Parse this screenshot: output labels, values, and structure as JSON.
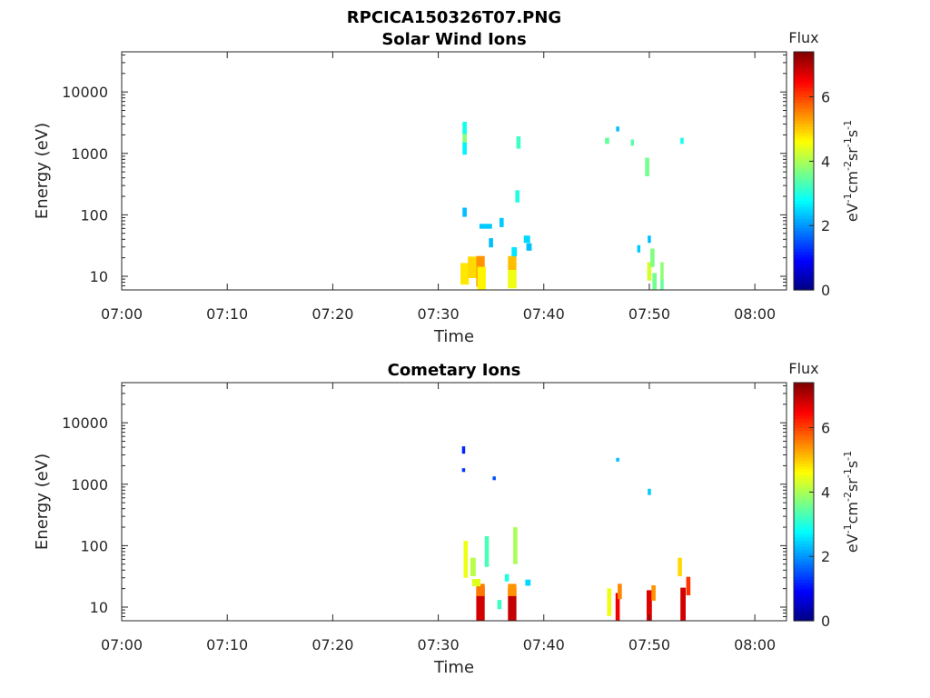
{
  "figure_title": "RPCICA150326T07.PNG",
  "colorbar": {
    "title": "Flux",
    "ticks": [
      0,
      2,
      4,
      6
    ],
    "range": [
      0,
      7.4
    ],
    "colormap": "jet",
    "label": "eV-1cm-2sr-1s-1"
  },
  "chart_data": [
    {
      "type": "heatmap",
      "title": "Solar Wind Ions",
      "xlabel": "Time",
      "ylabel": "Energy (eV)",
      "xlim": [
        "07:00",
        "08:03"
      ],
      "ylim": [
        6,
        45000
      ],
      "yscale": "log",
      "x_tick_labels": [
        "07:00",
        "07:10",
        "07:20",
        "07:30",
        "07:40",
        "07:50",
        "08:00"
      ],
      "y_tick_labels": [
        "10",
        "100",
        "1000",
        "10000"
      ],
      "cells": [
        {
          "t": 32.5,
          "e": 11,
          "flux": 4.8,
          "dt": 0.8,
          "w": 0.35
        },
        {
          "t": 33.2,
          "e": 14,
          "flux": 4.9,
          "dt": 0.8,
          "w": 0.35
        },
        {
          "t": 34.0,
          "e": 12,
          "flux": 5.4,
          "dt": 0.8,
          "w": 0.5
        },
        {
          "t": 34.1,
          "e": 9,
          "flux": 4.7,
          "dt": 0.8,
          "w": 0.4
        },
        {
          "t": 37.0,
          "e": 12,
          "flux": 5.1,
          "dt": 0.8,
          "w": 0.5
        },
        {
          "t": 37.0,
          "e": 9,
          "flux": 4.5,
          "dt": 0.8,
          "w": 0.3
        },
        {
          "t": 32.5,
          "e": 1800,
          "flux": 3.8,
          "dt": 0.4,
          "w": 0.25
        },
        {
          "t": 32.5,
          "e": 2600,
          "flux": 2.9,
          "dt": 0.4,
          "w": 0.2
        },
        {
          "t": 32.5,
          "e": 1200,
          "flux": 2.7,
          "dt": 0.4,
          "w": 0.2
        },
        {
          "t": 32.5,
          "e": 110,
          "flux": 2.3,
          "dt": 0.4,
          "w": 0.15
        },
        {
          "t": 34.5,
          "e": 65,
          "flux": 2.4,
          "dt": 1.2,
          "w": 0.08
        },
        {
          "t": 35.0,
          "e": 35,
          "flux": 2.3,
          "dt": 0.4,
          "w": 0.15
        },
        {
          "t": 36.0,
          "e": 75,
          "flux": 2.4,
          "dt": 0.4,
          "w": 0.15
        },
        {
          "t": 37.2,
          "e": 25,
          "flux": 2.6,
          "dt": 0.5,
          "w": 0.15
        },
        {
          "t": 37.5,
          "e": 200,
          "flux": 3.0,
          "dt": 0.4,
          "w": 0.2
        },
        {
          "t": 37.6,
          "e": 1500,
          "flux": 3.2,
          "dt": 0.4,
          "w": 0.2
        },
        {
          "t": 38.4,
          "e": 40,
          "flux": 2.5,
          "dt": 0.6,
          "w": 0.12
        },
        {
          "t": 38.6,
          "e": 30,
          "flux": 2.3,
          "dt": 0.5,
          "w": 0.12
        },
        {
          "t": 49.8,
          "e": 600,
          "flux": 3.6,
          "dt": 0.4,
          "w": 0.3
        },
        {
          "t": 50.0,
          "e": 12,
          "flux": 4.3,
          "dt": 0.4,
          "w": 0.3
        },
        {
          "t": 50.3,
          "e": 20,
          "flux": 3.7,
          "dt": 0.4,
          "w": 0.3
        },
        {
          "t": 50.5,
          "e": 8,
          "flux": 3.6,
          "dt": 0.4,
          "w": 0.3
        },
        {
          "t": 51.2,
          "e": 12,
          "flux": 3.8,
          "dt": 0.3,
          "w": 0.3
        },
        {
          "t": 51.2,
          "e": 7,
          "flux": 3.5,
          "dt": 0.3,
          "w": 0.2
        },
        {
          "t": 46.0,
          "e": 1600,
          "flux": 3.5,
          "dt": 0.4,
          "w": 0.1
        },
        {
          "t": 48.4,
          "e": 1500,
          "flux": 3.4,
          "dt": 0.3,
          "w": 0.1
        },
        {
          "t": 53.1,
          "e": 1600,
          "flux": 2.9,
          "dt": 0.3,
          "w": 0.1
        },
        {
          "t": 49.0,
          "e": 28,
          "flux": 2.4,
          "dt": 0.3,
          "w": 0.12
        },
        {
          "t": 50.0,
          "e": 40,
          "flux": 2.3,
          "dt": 0.3,
          "w": 0.12
        },
        {
          "t": 47.0,
          "e": 2500,
          "flux": 2.3,
          "dt": 0.3,
          "w": 0.08
        }
      ]
    },
    {
      "type": "heatmap",
      "title": "Cometary Ions",
      "xlabel": "Time",
      "ylabel": "Energy (eV)",
      "xlim": [
        "07:00",
        "08:03"
      ],
      "ylim": [
        6,
        45000
      ],
      "yscale": "log",
      "x_tick_labels": [
        "07:00",
        "07:10",
        "07:20",
        "07:30",
        "07:40",
        "07:50",
        "08:00"
      ],
      "y_tick_labels": [
        "10",
        "100",
        "1000",
        "10000"
      ],
      "cells": [
        {
          "t": 34.0,
          "e": 11,
          "flux": 6.8,
          "dt": 0.8,
          "w": 0.55
        },
        {
          "t": 34.0,
          "e": 19,
          "flux": 5.6,
          "dt": 0.8,
          "w": 0.2
        },
        {
          "t": 33.6,
          "e": 25,
          "flux": 4.4,
          "dt": 0.8,
          "w": 0.12
        },
        {
          "t": 35.8,
          "e": 11,
          "flux": 3.2,
          "dt": 0.4,
          "w": 0.15
        },
        {
          "t": 37.0,
          "e": 11,
          "flux": 6.9,
          "dt": 0.8,
          "w": 0.55
        },
        {
          "t": 37.0,
          "e": 19,
          "flux": 5.4,
          "dt": 0.8,
          "w": 0.2
        },
        {
          "t": 46.2,
          "e": 12,
          "flux": 4.5,
          "dt": 0.4,
          "w": 0.45
        },
        {
          "t": 47.0,
          "e": 9,
          "flux": 6.6,
          "dt": 0.4,
          "w": 0.55
        },
        {
          "t": 47.2,
          "e": 18,
          "flux": 5.5,
          "dt": 0.4,
          "w": 0.25
        },
        {
          "t": 50.0,
          "e": 10,
          "flux": 6.7,
          "dt": 0.5,
          "w": 0.55
        },
        {
          "t": 50.4,
          "e": 17,
          "flux": 5.4,
          "dt": 0.4,
          "w": 0.25
        },
        {
          "t": 53.2,
          "e": 11,
          "flux": 6.8,
          "dt": 0.5,
          "w": 0.55
        },
        {
          "t": 53.7,
          "e": 22,
          "flux": 6.1,
          "dt": 0.4,
          "w": 0.3
        },
        {
          "t": 52.9,
          "e": 45,
          "flux": 4.9,
          "dt": 0.4,
          "w": 0.3
        },
        {
          "t": 32.6,
          "e": 60,
          "flux": 4.5,
          "dt": 0.4,
          "w": 0.6
        },
        {
          "t": 33.3,
          "e": 45,
          "flux": 4.1,
          "dt": 0.5,
          "w": 0.3
        },
        {
          "t": 34.6,
          "e": 80,
          "flux": 3.3,
          "dt": 0.4,
          "w": 0.5
        },
        {
          "t": 37.3,
          "e": 100,
          "flux": 4.0,
          "dt": 0.4,
          "w": 0.6
        },
        {
          "t": 32.4,
          "e": 3600,
          "flux": 1.2,
          "dt": 0.3,
          "w": 0.12
        },
        {
          "t": 32.4,
          "e": 1700,
          "flux": 1.3,
          "dt": 0.3,
          "w": 0.06
        },
        {
          "t": 35.3,
          "e": 1250,
          "flux": 1.5,
          "dt": 0.3,
          "w": 0.06
        },
        {
          "t": 47.0,
          "e": 2500,
          "flux": 2.3,
          "dt": 0.3,
          "w": 0.06
        },
        {
          "t": 50.0,
          "e": 750,
          "flux": 2.4,
          "dt": 0.3,
          "w": 0.1
        },
        {
          "t": 38.5,
          "e": 25,
          "flux": 2.5,
          "dt": 0.5,
          "w": 0.1
        },
        {
          "t": 36.5,
          "e": 30,
          "flux": 3.0,
          "dt": 0.4,
          "w": 0.12
        }
      ]
    }
  ]
}
